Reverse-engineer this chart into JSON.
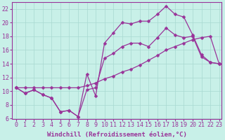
{
  "xlabel": "Windchill (Refroidissement éolien,°C)",
  "bg_color": "#c8f0e8",
  "grid_color": "#a8d8d0",
  "line_color": "#993399",
  "xlim": [
    -0.5,
    23.3
  ],
  "ylim": [
    6,
    23
  ],
  "xticks": [
    0,
    1,
    2,
    3,
    4,
    5,
    6,
    7,
    8,
    9,
    10,
    11,
    12,
    13,
    14,
    15,
    16,
    17,
    18,
    19,
    20,
    21,
    22,
    23
  ],
  "yticks": [
    6,
    8,
    10,
    12,
    14,
    16,
    18,
    20,
    22
  ],
  "line1_x": [
    0,
    1,
    2,
    3,
    4,
    5,
    6,
    7,
    8,
    9,
    10,
    11,
    12,
    13,
    14,
    15,
    16,
    17,
    18,
    19,
    20,
    21,
    22,
    23
  ],
  "line1_y": [
    10.5,
    9.7,
    10.2,
    9.5,
    9.0,
    7.0,
    7.2,
    6.3,
    12.5,
    9.3,
    17.0,
    18.5,
    20.0,
    19.8,
    20.2,
    20.2,
    21.2,
    22.4,
    21.2,
    20.8,
    18.2,
    15.3,
    14.2,
    14.0
  ],
  "line2_x": [
    0,
    1,
    2,
    3,
    4,
    5,
    6,
    7,
    8,
    9,
    10,
    11,
    12,
    13,
    14,
    15,
    16,
    17,
    18,
    19,
    20,
    21,
    22,
    23
  ],
  "line2_y": [
    10.5,
    9.7,
    10.2,
    9.5,
    9.0,
    7.0,
    7.2,
    6.3,
    10.2,
    10.5,
    14.8,
    15.5,
    16.5,
    17.0,
    17.0,
    16.5,
    17.8,
    19.2,
    18.2,
    17.8,
    18.0,
    15.0,
    14.2,
    14.0
  ],
  "line3_x": [
    0,
    1,
    2,
    3,
    4,
    5,
    6,
    7,
    8,
    9,
    10,
    11,
    12,
    13,
    14,
    15,
    16,
    17,
    18,
    19,
    20,
    21,
    22,
    23
  ],
  "line3_y": [
    10.5,
    10.5,
    10.5,
    10.5,
    10.5,
    10.5,
    10.5,
    10.5,
    10.8,
    11.2,
    11.8,
    12.2,
    12.8,
    13.2,
    13.8,
    14.5,
    15.2,
    16.0,
    16.5,
    17.0,
    17.5,
    17.8,
    18.0,
    14.0
  ],
  "markersize": 2.5,
  "linewidth": 0.9,
  "xlabel_fontsize": 6.5,
  "tick_fontsize": 6.0
}
